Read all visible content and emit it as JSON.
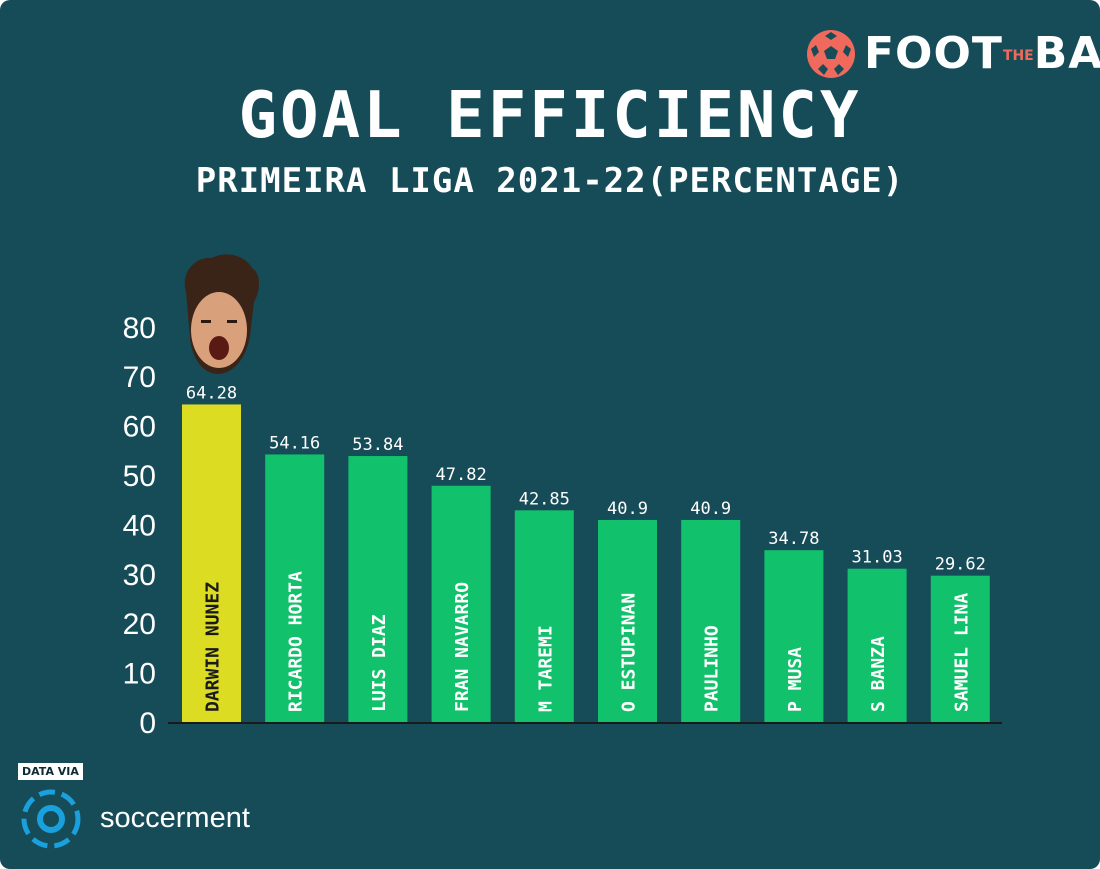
{
  "brand": {
    "left": "FOOT",
    "middle": "THE",
    "right": "BALL"
  },
  "source": {
    "label": "DATA VIA",
    "name": "soccerment"
  },
  "colors": {
    "background": "#164c58",
    "highlight_bar": "#dcdc23",
    "bar": "#12c16b",
    "text": "#ffffff",
    "brand_accent": "#ef6a5c",
    "source_accent": "#1aa0dc"
  },
  "chart_data": {
    "type": "bar",
    "title": "GOAL EFFICIENCY",
    "subtitle": "PRIMEIRA LIGA 2021-22(PERCENTAGE)",
    "categories": [
      "DARWIN NUNEZ",
      "RICARDO HORTA",
      "LUIS DIAZ",
      "FRAN NAVARRO",
      "M TAREMI",
      "O ESTUPINAN",
      "PAULINHO",
      "P MUSA",
      "S BANZA",
      "SAMUEL LINA"
    ],
    "values": [
      64.28,
      54.16,
      53.84,
      47.82,
      42.85,
      40.9,
      40.9,
      34.78,
      31.03,
      29.62
    ],
    "value_labels": [
      "64.28",
      "54.16",
      "53.84",
      "47.82",
      "42.85",
      "40.9",
      "40.9",
      "34.78",
      "31.03",
      "29.62"
    ],
    "highlighted": [
      "DARWIN NUNEZ"
    ],
    "ylim": [
      0,
      80
    ],
    "yticks": [
      0,
      10,
      20,
      30,
      40,
      50,
      60,
      70,
      80
    ],
    "xlabel": "",
    "ylabel": "",
    "grid": false
  }
}
